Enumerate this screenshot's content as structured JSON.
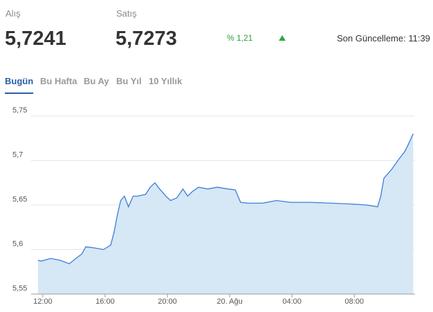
{
  "header": {
    "buy_label": "Alış",
    "buy_value": "5,7241",
    "sell_label": "Satış",
    "sell_value": "5,7273",
    "change": "% 1,21",
    "updated": "Son Güncelleme: 11:39"
  },
  "tabs": [
    "Bugün",
    "Bu Hafta",
    "Bu Ay",
    "Bu Yıl",
    "10 Yıllık"
  ],
  "chart_data": {
    "type": "area",
    "color": "#3b7dd8",
    "fill": "#d6e7f5",
    "grid": true,
    "x": [
      11.69,
      11.9,
      12.5,
      13.1,
      13.7,
      14.13,
      14.5,
      14.76,
      15.24,
      15.9,
      16.36,
      16.58,
      16.8,
      17.0,
      17.24,
      17.5,
      17.8,
      18.1,
      18.6,
      18.9,
      19.2,
      19.5,
      19.9,
      20.2,
      20.6,
      21.0,
      21.3,
      21.6,
      22.0,
      22.6,
      23.2,
      23.9,
      24.36,
      24.7,
      25.2,
      26.1,
      27.0,
      27.9,
      29.2,
      30.6,
      31.9,
      32.8,
      33.5,
      33.7,
      33.9,
      34.4,
      34.8,
      35.24,
      35.47,
      35.78
    ],
    "values": [
      5.588,
      5.587,
      5.59,
      5.588,
      5.584,
      5.59,
      5.595,
      5.603,
      5.602,
      5.6,
      5.605,
      5.62,
      5.64,
      5.655,
      5.66,
      5.648,
      5.66,
      5.66,
      5.662,
      5.67,
      5.675,
      5.668,
      5.66,
      5.655,
      5.658,
      5.668,
      5.66,
      5.665,
      5.67,
      5.668,
      5.67,
      5.668,
      5.667,
      5.653,
      5.652,
      5.652,
      5.655,
      5.653,
      5.653,
      5.652,
      5.651,
      5.65,
      5.648,
      5.66,
      5.68,
      5.69,
      5.7,
      5.71,
      5.718,
      5.73
    ],
    "xlim": [
      11.25,
      35.9
    ],
    "ylim": [
      5.55,
      5.75
    ],
    "xticks": [
      {
        "value": 12,
        "label": "12:00"
      },
      {
        "value": 16,
        "label": "16:00"
      },
      {
        "value": 20,
        "label": "20:00"
      },
      {
        "value": 24,
        "label": "20. Ağu"
      },
      {
        "value": 28,
        "label": "04:00"
      },
      {
        "value": 32,
        "label": "08:00"
      }
    ],
    "yticks": [
      {
        "value": 5.55,
        "label": "5,55"
      },
      {
        "value": 5.6,
        "label": "5,6"
      },
      {
        "value": 5.65,
        "label": "5,65"
      },
      {
        "value": 5.7,
        "label": "5,7"
      },
      {
        "value": 5.75,
        "label": "5,75"
      }
    ]
  }
}
